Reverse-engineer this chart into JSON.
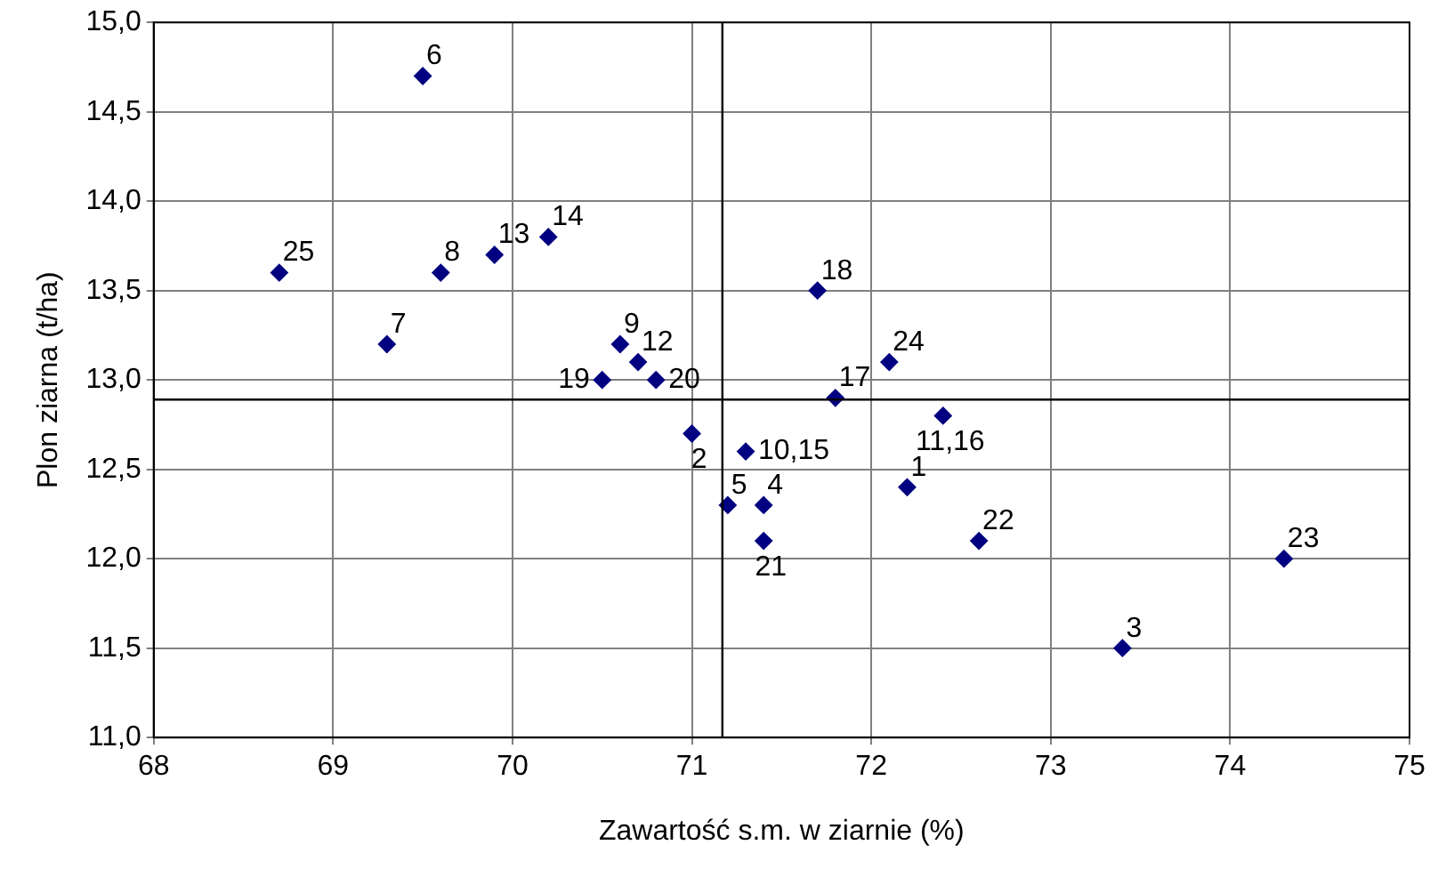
{
  "chart_data": {
    "type": "scatter",
    "xlabel": "Zawartość s.m. w ziarnie (%)",
    "ylabel": "Plon ziarna (t/ha)",
    "x": [
      72.2,
      71.0,
      73.4,
      71.4,
      71.2,
      69.5,
      69.3,
      69.6,
      70.6,
      71.3,
      72.4,
      70.7,
      69.9,
      70.2,
      71.8,
      71.7,
      70.5,
      70.8,
      71.4,
      72.6,
      74.3,
      72.1,
      68.7
    ],
    "series": [
      {
        "color": "#000080",
        "values": [
          12.4,
          12.7,
          11.5,
          12.3,
          12.3,
          14.7,
          13.2,
          13.6,
          13.2,
          12.6,
          12.8,
          13.1,
          13.7,
          13.8,
          12.9,
          13.5,
          13.0,
          13.0,
          12.1,
          12.1,
          12.0,
          13.1,
          13.6
        ]
      }
    ],
    "annotations": [
      {
        "text": "1",
        "x": 72.2,
        "y": 12.4
      },
      {
        "text": "2",
        "x": 71.0,
        "y": 12.7
      },
      {
        "text": "3",
        "x": 73.4,
        "y": 11.5
      },
      {
        "text": "4",
        "x": 71.4,
        "y": 12.3
      },
      {
        "text": "5",
        "x": 71.2,
        "y": 12.3
      },
      {
        "text": "6",
        "x": 69.5,
        "y": 14.7
      },
      {
        "text": "7",
        "x": 69.3,
        "y": 13.2
      },
      {
        "text": "8",
        "x": 69.6,
        "y": 13.6
      },
      {
        "text": "9",
        "x": 70.6,
        "y": 13.2
      },
      {
        "text": "10,15",
        "x": 71.3,
        "y": 12.6
      },
      {
        "text": "11,16",
        "x": 72.4,
        "y": 12.8
      },
      {
        "text": "12",
        "x": 70.7,
        "y": 13.1
      },
      {
        "text": "13",
        "x": 69.9,
        "y": 13.7
      },
      {
        "text": "14",
        "x": 70.2,
        "y": 13.8
      },
      {
        "text": "17",
        "x": 71.8,
        "y": 12.9
      },
      {
        "text": "18",
        "x": 71.7,
        "y": 13.5
      },
      {
        "text": "19",
        "x": 70.5,
        "y": 13.0
      },
      {
        "text": "20",
        "x": 70.8,
        "y": 13.0
      },
      {
        "text": "21",
        "x": 71.4,
        "y": 12.1
      },
      {
        "text": "22",
        "x": 72.6,
        "y": 12.1
      },
      {
        "text": "23",
        "x": 74.3,
        "y": 12.0
      },
      {
        "text": "24",
        "x": 72.1,
        "y": 13.1
      },
      {
        "text": "25",
        "x": 68.7,
        "y": 13.6
      }
    ],
    "xlim": [
      68,
      75
    ],
    "xticks": [
      68,
      69,
      70,
      71,
      72,
      73,
      74,
      75
    ],
    "ylim": [
      11,
      15
    ],
    "yticks": [
      {
        "value": 11,
        "label": "11,0"
      },
      {
        "value": 11.5,
        "label": "11,5"
      },
      {
        "value": 12,
        "label": "12,0"
      },
      {
        "value": 12.5,
        "label": "12,5"
      },
      {
        "value": 13,
        "label": "13,0"
      },
      {
        "value": 13.5,
        "label": "13,5"
      },
      {
        "value": 14,
        "label": "14,0"
      },
      {
        "value": 14.5,
        "label": "14,5"
      },
      {
        "value": 15,
        "label": "15,0"
      }
    ],
    "ref_lines": [
      {
        "axis": "x",
        "value": 71.17,
        "color": "#000000"
      },
      {
        "axis": "y",
        "value": 12.89,
        "color": "#000000"
      }
    ],
    "grid": true,
    "legend": false,
    "marker": "diamond"
  }
}
